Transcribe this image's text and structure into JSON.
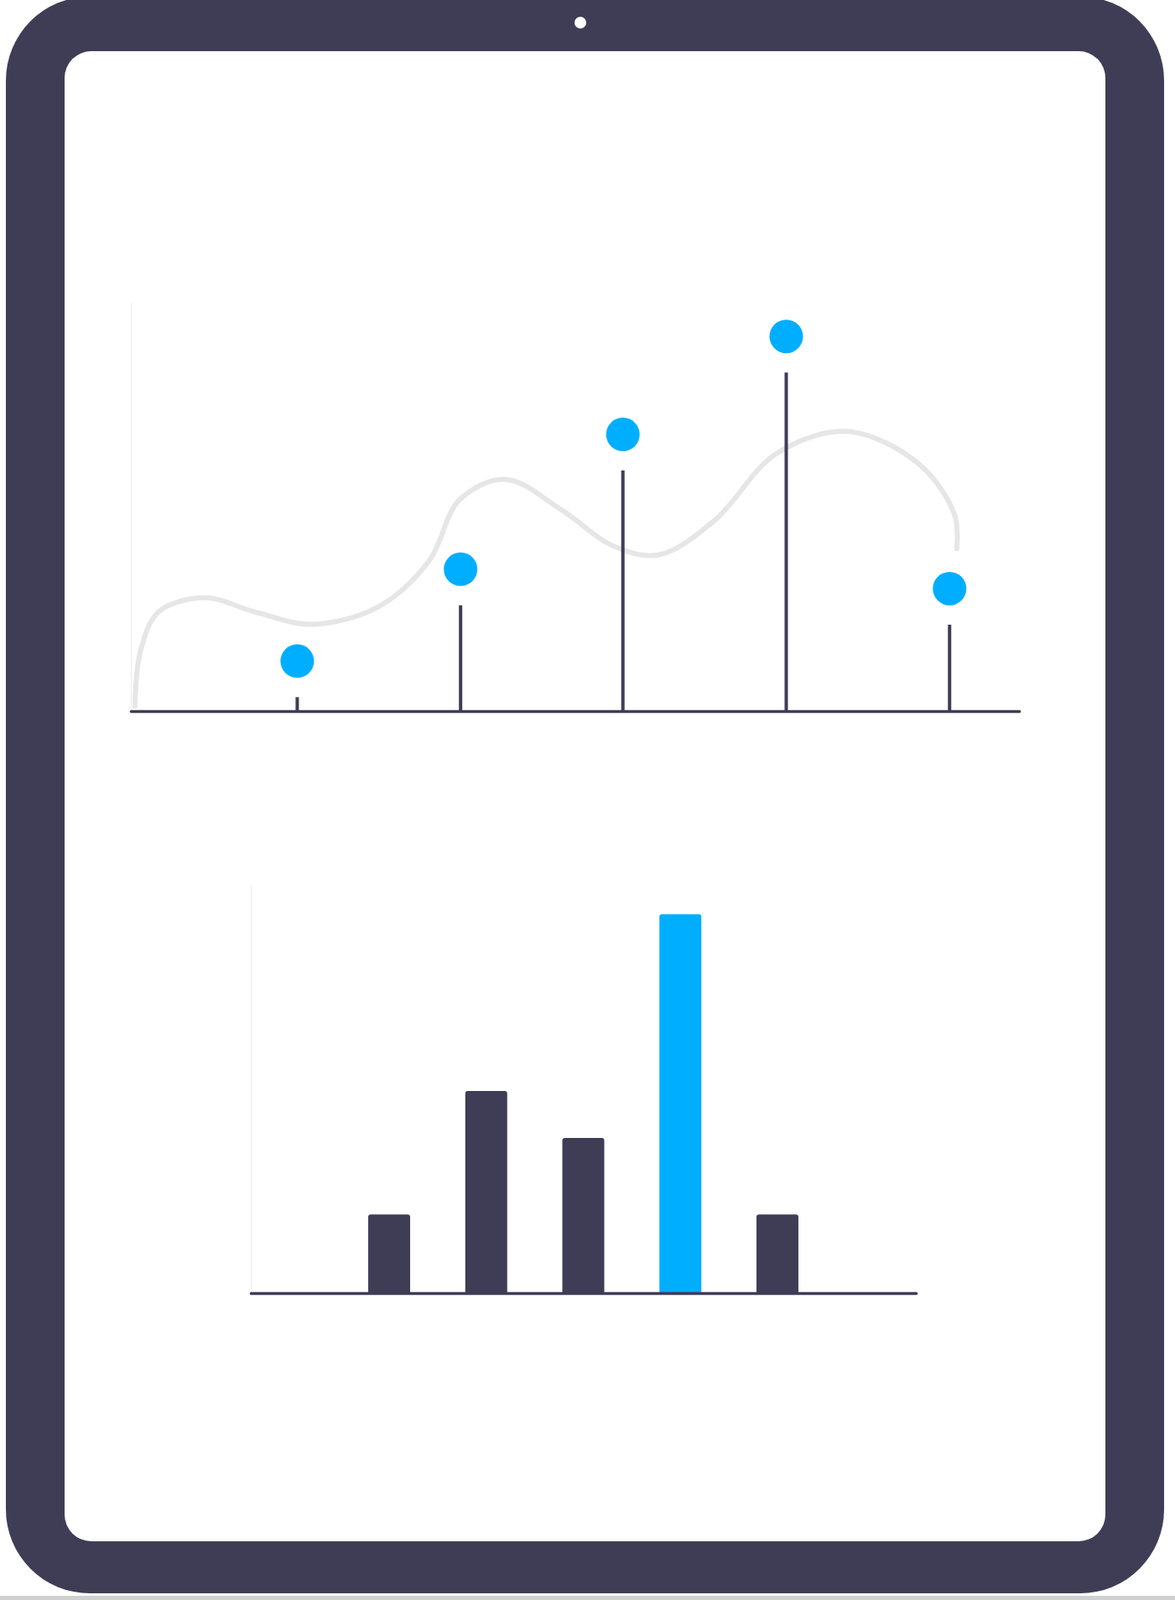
{
  "chart_data": [
    {
      "type": "lollipop",
      "xlim": [
        0,
        870
      ],
      "ylim": [
        0,
        400
      ],
      "tick_labels": false,
      "series": [
        {
          "type": "lollipop",
          "color": "#00aeff",
          "marker": "circle",
          "x": [
            163,
            323,
            482,
            642,
            802
          ],
          "values": [
            49,
            139,
            271,
            367,
            120
          ]
        },
        {
          "type": "line",
          "color": "#e6e6e6",
          "line_style": "solid",
          "x": [
            4,
            9,
            27,
            72,
            122,
            177,
            242,
            292,
            322,
            367,
            422,
            472,
            517,
            572,
            632,
            702,
            772,
            807,
            809
          ],
          "values": [
            5,
            57,
            97,
            111,
            97,
            85,
            102,
            147,
            207,
            227,
            197,
            162,
            153,
            187,
            252,
            274,
            242,
            192,
            159
          ]
        }
      ]
    },
    {
      "type": "bar",
      "categories": [
        null,
        null,
        null,
        null,
        null
      ],
      "values": [
        77,
        198,
        152,
        371,
        77
      ],
      "colors": [
        "#3f3d56",
        "#3f3d56",
        "#3f3d56",
        "#00aeff",
        "#3f3d56"
      ],
      "ylim": [
        0,
        400
      ],
      "tick_labels": false
    }
  ]
}
